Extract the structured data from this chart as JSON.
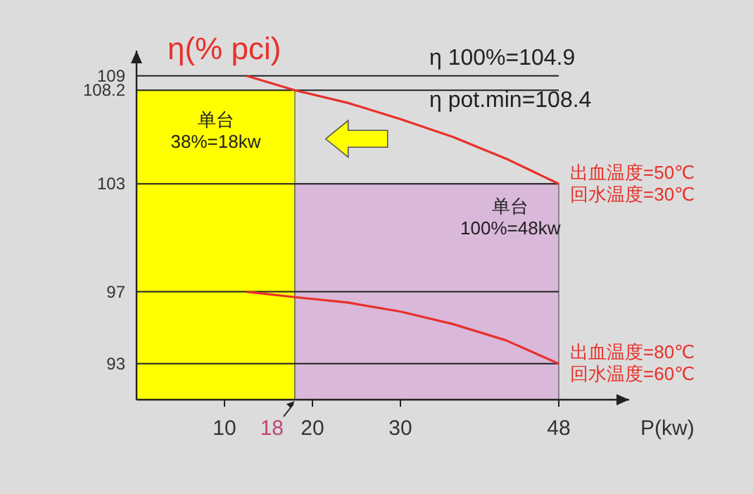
{
  "chart_data": {
    "type": "line",
    "ylabel": "η(% pci)",
    "xlabel": "P(kw)",
    "xlim": [
      0,
      56
    ],
    "ylim": [
      91,
      110.4
    ],
    "xticks": [
      10,
      20,
      30,
      48
    ],
    "yticks": [
      93,
      97,
      103,
      108.2,
      109
    ],
    "ref_lines": [
      {
        "axis": "y",
        "value": 109,
        "color": "#222222"
      },
      {
        "axis": "y",
        "value": 108.2,
        "color": "#222222"
      },
      {
        "axis": "y",
        "value": 103,
        "color": "#222222"
      },
      {
        "axis": "y",
        "value": 97,
        "color": "#222222"
      },
      {
        "axis": "y",
        "value": 93,
        "color": "#222222"
      }
    ],
    "series": [
      {
        "type": "area",
        "color": "#ffff00",
        "x": [
          0,
          18
        ],
        "values": [
          108.2,
          108.2
        ]
      },
      {
        "type": "area",
        "color": "#d9b8da",
        "x": [
          18,
          48
        ],
        "values": [
          103,
          103
        ]
      },
      {
        "name": "出血温度=50℃\n回水温度=30℃",
        "color": "#e8302a",
        "x": [
          12.5,
          18,
          24,
          30,
          36,
          42,
          48
        ],
        "values": [
          109,
          108.2,
          107.5,
          106.6,
          105.6,
          104.4,
          103
        ]
      },
      {
        "name": "出血温度=80℃\n回水温度=60℃",
        "color": "#e8302a",
        "x": [
          12.5,
          18,
          24,
          30,
          36,
          42,
          48
        ],
        "values": [
          97,
          96.7,
          96.4,
          95.9,
          95.2,
          94.3,
          93
        ]
      }
    ],
    "annotations": [
      "η 100%=104.9",
      "η pot.min=108.4",
      "单台\n38%=18kw",
      "单台\n100%=48kw",
      {
        "text": "18",
        "x": 18,
        "y": 91
      }
    ]
  }
}
